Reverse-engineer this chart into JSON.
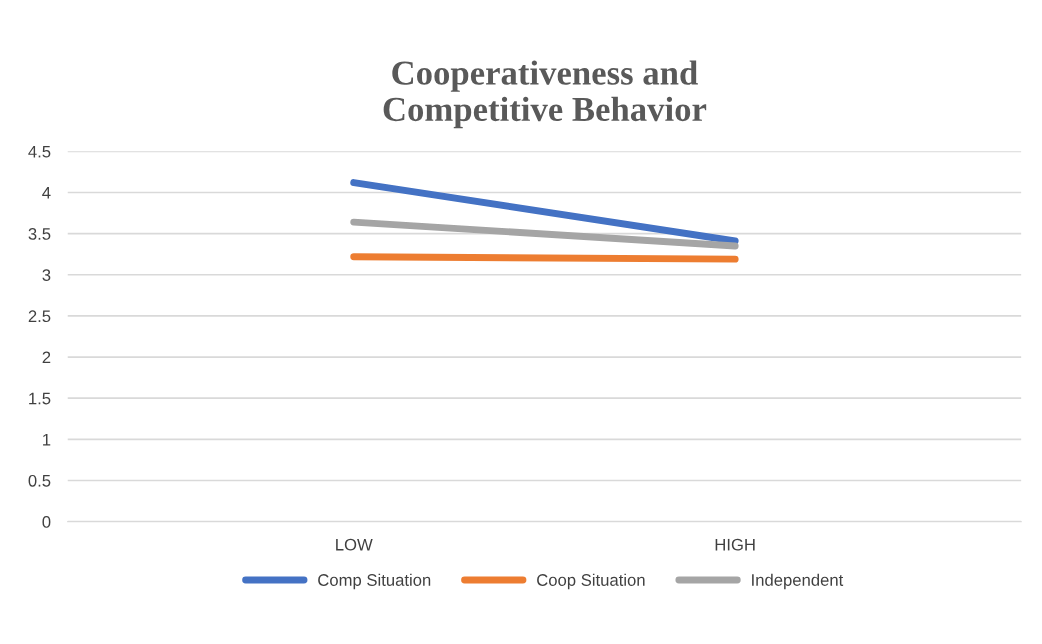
{
  "chart_data": {
    "type": "line",
    "title": "Cooperativeness and\nCompetitive Behavior",
    "categories": [
      "LOW",
      "HIGH"
    ],
    "series": [
      {
        "name": "Comp Situation",
        "color": "#4472c4",
        "values": [
          4.12,
          3.41
        ]
      },
      {
        "name": "Coop Situation",
        "color": "#ed7d31",
        "values": [
          3.22,
          3.19
        ]
      },
      {
        "name": "Independent",
        "color": "#a5a5a5",
        "values": [
          3.64,
          3.35
        ]
      }
    ],
    "ylim": [
      0,
      4.5
    ],
    "yticks": [
      0,
      0.5,
      1,
      1.5,
      2,
      2.5,
      3,
      3.5,
      4,
      4.5
    ],
    "grid": "y",
    "legend": "bottom",
    "marker": "none",
    "line_style": "solid"
  }
}
